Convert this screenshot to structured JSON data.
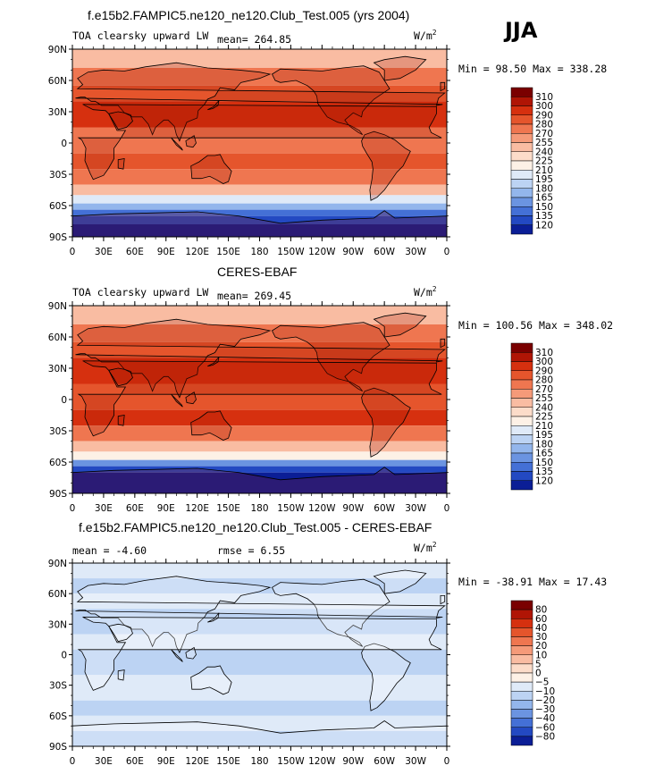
{
  "season": "JJA",
  "chart_data": [
    {
      "type": "heatmap",
      "title": "f.e15b2.FAMPIC5.ne120_ne120.Club_Test.005 (yrs 2004)",
      "left_label": "TOA clearsky upward LW",
      "mean_text": "mean= 264.85",
      "units": "W/m",
      "units_sup": "2",
      "min_max_text": "Min =  98.50 Max = 338.28",
      "yticks": [
        "90N",
        "60N",
        "30N",
        "0",
        "30S",
        "60S",
        "90S"
      ],
      "xticks": [
        "0",
        "30E",
        "60E",
        "90E",
        "120E",
        "150E",
        "180",
        "150W",
        "120W",
        "90W",
        "60W",
        "30W",
        "0"
      ],
      "colorbar": {
        "levels": [
          "310",
          "300",
          "290",
          "280",
          "270",
          "255",
          "240",
          "225",
          "210",
          "195",
          "180",
          "165",
          "150",
          "135",
          "120"
        ],
        "colors": [
          "#7a0000",
          "#b01505",
          "#d6300f",
          "#e5552c",
          "#ef7650",
          "#f59a79",
          "#f9bca2",
          "#fcdcc9",
          "#fdf1e6",
          "#dfeaf8",
          "#bcd3f3",
          "#93b6ec",
          "#6b94e1",
          "#4470d6",
          "#2349c2",
          "#0b1e96"
        ]
      },
      "bands": [
        {
          "lat_from": 90,
          "lat_to": 72,
          "color": "#f9bca2"
        },
        {
          "lat_from": 72,
          "lat_to": 55,
          "color": "#ef7650"
        },
        {
          "lat_from": 55,
          "lat_to": 40,
          "color": "#e5552c"
        },
        {
          "lat_from": 40,
          "lat_to": 15,
          "color": "#d6300f"
        },
        {
          "lat_from": 15,
          "lat_to": -10,
          "color": "#ef7650"
        },
        {
          "lat_from": -10,
          "lat_to": -25,
          "color": "#e5552c"
        },
        {
          "lat_from": -25,
          "lat_to": -40,
          "color": "#ef7650"
        },
        {
          "lat_from": -40,
          "lat_to": -50,
          "color": "#f9bca2"
        },
        {
          "lat_from": -50,
          "lat_to": -58,
          "color": "#dfeaf8"
        },
        {
          "lat_from": -58,
          "lat_to": -64,
          "color": "#93b6ec"
        },
        {
          "lat_from": -64,
          "lat_to": -70,
          "color": "#4470d6"
        },
        {
          "lat_from": -70,
          "lat_to": -78,
          "color": "#2349c2"
        },
        {
          "lat_from": -78,
          "lat_to": -90,
          "color": "#0b1e96"
        }
      ]
    },
    {
      "type": "heatmap",
      "title": "CERES-EBAF",
      "left_label": "TOA clearsky upward LW",
      "mean_text": "mean= 269.45",
      "units": "W/m",
      "units_sup": "2",
      "min_max_text": "Min = 100.56 Max = 348.02",
      "yticks": [
        "90N",
        "60N",
        "30N",
        "0",
        "30S",
        "60S",
        "90S"
      ],
      "xticks": [
        "0",
        "30E",
        "60E",
        "90E",
        "120E",
        "150E",
        "180",
        "150W",
        "120W",
        "90W",
        "60W",
        "30W",
        "0"
      ],
      "colorbar": {
        "levels": [
          "310",
          "300",
          "290",
          "280",
          "270",
          "255",
          "240",
          "225",
          "210",
          "195",
          "180",
          "165",
          "150",
          "135",
          "120"
        ],
        "colors": [
          "#7a0000",
          "#b01505",
          "#d6300f",
          "#e5552c",
          "#ef7650",
          "#f59a79",
          "#f9bca2",
          "#fcdcc9",
          "#fdf1e6",
          "#dfeaf8",
          "#bcd3f3",
          "#93b6ec",
          "#6b94e1",
          "#4470d6",
          "#2349c2",
          "#0b1e96"
        ]
      },
      "bands": [
        {
          "lat_from": 90,
          "lat_to": 72,
          "color": "#f9bca2"
        },
        {
          "lat_from": 72,
          "lat_to": 55,
          "color": "#ef7650"
        },
        {
          "lat_from": 55,
          "lat_to": 40,
          "color": "#e5552c"
        },
        {
          "lat_from": 40,
          "lat_to": 15,
          "color": "#d6300f"
        },
        {
          "lat_from": 15,
          "lat_to": -10,
          "color": "#e5552c"
        },
        {
          "lat_from": -10,
          "lat_to": -25,
          "color": "#d6300f"
        },
        {
          "lat_from": -25,
          "lat_to": -40,
          "color": "#ef7650"
        },
        {
          "lat_from": -40,
          "lat_to": -50,
          "color": "#f9bca2"
        },
        {
          "lat_from": -50,
          "lat_to": -58,
          "color": "#fdf1e6"
        },
        {
          "lat_from": -58,
          "lat_to": -64,
          "color": "#6b94e1"
        },
        {
          "lat_from": -64,
          "lat_to": -70,
          "color": "#2349c2"
        },
        {
          "lat_from": -70,
          "lat_to": -78,
          "color": "#0b1e96"
        },
        {
          "lat_from": -78,
          "lat_to": -90,
          "color": "#0b1e96"
        }
      ]
    },
    {
      "type": "heatmap",
      "title": "f.e15b2.FAMPIC5.ne120_ne120.Club_Test.005 - CERES-EBAF",
      "left_label": "mean =   -4.60",
      "mean_text": "rmse =    6.55",
      "units": "W/m",
      "units_sup": "2",
      "min_max_text": "Min = -38.91 Max =  17.43",
      "yticks": [
        "90N",
        "60N",
        "30N",
        "0",
        "30S",
        "60S",
        "90S"
      ],
      "xticks": [
        "0",
        "30E",
        "60E",
        "90E",
        "120E",
        "150E",
        "180",
        "150W",
        "120W",
        "90W",
        "60W",
        "30W",
        "0"
      ],
      "colorbar": {
        "levels": [
          "80",
          "60",
          "40",
          "30",
          "20",
          "10",
          "5",
          "0",
          "−5",
          "−10",
          "−20",
          "−30",
          "−40",
          "−60",
          "−80"
        ],
        "colors": [
          "#7a0000",
          "#b01505",
          "#d6300f",
          "#e5552c",
          "#ef7650",
          "#f59a79",
          "#f9bca2",
          "#fcdcc9",
          "#fdf1e6",
          "#dfeaf8",
          "#bcd3f3",
          "#93b6ec",
          "#6b94e1",
          "#4470d6",
          "#2349c2",
          "#0b1e96"
        ]
      },
      "bands": [
        {
          "lat_from": 90,
          "lat_to": 75,
          "color": "#dfeaf8"
        },
        {
          "lat_from": 75,
          "lat_to": 60,
          "color": "#bcd3f3"
        },
        {
          "lat_from": 60,
          "lat_to": 45,
          "color": "#dfeaf8"
        },
        {
          "lat_from": 45,
          "lat_to": 20,
          "color": "#bcd3f3"
        },
        {
          "lat_from": 20,
          "lat_to": 5,
          "color": "#dfeaf8"
        },
        {
          "lat_from": 5,
          "lat_to": -20,
          "color": "#bcd3f3"
        },
        {
          "lat_from": -20,
          "lat_to": -45,
          "color": "#dfeaf8"
        },
        {
          "lat_from": -45,
          "lat_to": -60,
          "color": "#bcd3f3"
        },
        {
          "lat_from": -60,
          "lat_to": -75,
          "color": "#dfeaf8"
        },
        {
          "lat_from": -75,
          "lat_to": -90,
          "color": "#bcd3f3"
        }
      ]
    }
  ]
}
